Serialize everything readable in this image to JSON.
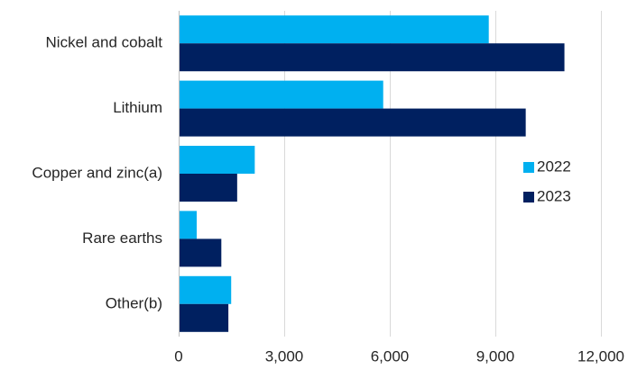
{
  "chart_data": {
    "type": "bar",
    "orientation": "horizontal",
    "categories": [
      "Nickel and cobalt",
      "Lithium",
      "Copper and zinc(a)",
      "Rare earths",
      "Other(b)"
    ],
    "series": [
      {
        "name": "2022",
        "color": "#00B0F0",
        "values": [
          8800,
          5800,
          2150,
          500,
          1480
        ]
      },
      {
        "name": "2023",
        "color": "#002060",
        "values": [
          10950,
          9850,
          1650,
          1200,
          1400
        ]
      }
    ],
    "x_ticks": [
      0,
      3000,
      6000,
      9000,
      12000
    ],
    "x_tick_labels": [
      "0",
      "3,000",
      "6,000",
      "9,000",
      "12,000"
    ],
    "xlim": [
      0,
      12000
    ],
    "grid": "vertical",
    "legend_position": "right"
  }
}
